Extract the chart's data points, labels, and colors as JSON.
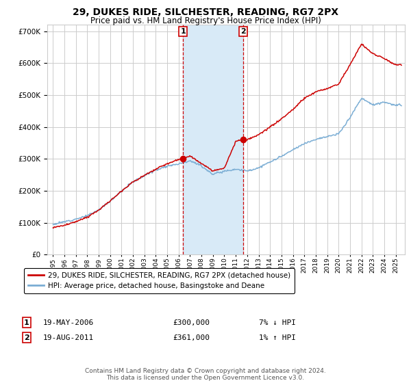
{
  "title": "29, DUKES RIDE, SILCHESTER, READING, RG7 2PX",
  "subtitle": "Price paid vs. HM Land Registry's House Price Index (HPI)",
  "legend_line1": "29, DUKES RIDE, SILCHESTER, READING, RG7 2PX (detached house)",
  "legend_line2": "HPI: Average price, detached house, Basingstoke and Deane",
  "annotation1_date": "19-MAY-2006",
  "annotation1_price": "£300,000",
  "annotation1_hpi": "7% ↓ HPI",
  "annotation1_year": 2006.38,
  "annotation1_value": 300000,
  "annotation2_date": "19-AUG-2011",
  "annotation2_price": "£361,000",
  "annotation2_hpi": "1% ↑ HPI",
  "annotation2_year": 2011.63,
  "annotation2_value": 361000,
  "red_line_color": "#cc0000",
  "blue_line_color": "#7aadd4",
  "shaded_region_color": "#d8eaf7",
  "background_color": "#ffffff",
  "grid_color": "#cccccc",
  "ylim": [
    0,
    720000
  ],
  "yticks": [
    0,
    100000,
    200000,
    300000,
    400000,
    500000,
    600000,
    700000
  ],
  "footer_text": "Contains HM Land Registry data © Crown copyright and database right 2024.\nThis data is licensed under the Open Government Licence v3.0."
}
